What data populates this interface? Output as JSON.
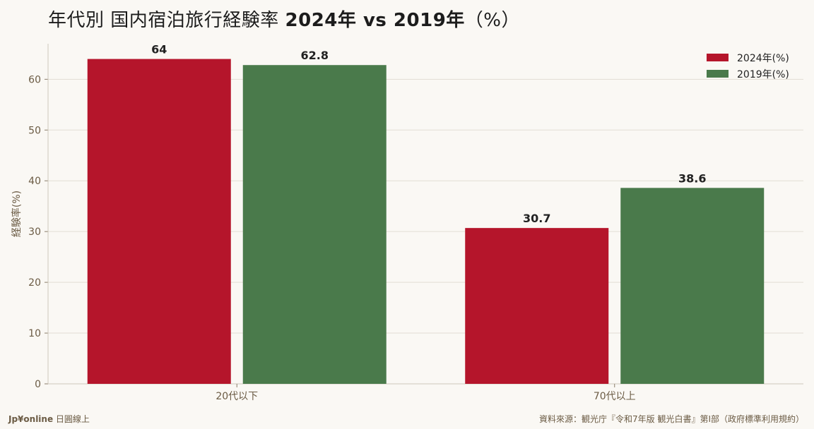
{
  "title_prefix": "年代別 国内宿泊旅行経験率 ",
  "title_years": "2024年 vs 2019年",
  "title_suffix": "（%）",
  "footer": {
    "brand": "Jp¥online",
    "brand_sub": " 日圓線上",
    "source": "資料來源：観光庁『令和7年版 観光白書』第I部（政府標準利用規約）"
  },
  "chart_data": {
    "type": "bar",
    "title": "年代別 国内宿泊旅行経験率 2024年 vs 2019年（%）",
    "xlabel": "",
    "ylabel": "経験率(%)",
    "categories": [
      "20代以下",
      "70代以上"
    ],
    "series": [
      {
        "name": "2024年(%)",
        "values": [
          64,
          30.7
        ],
        "color": "#b5152b"
      },
      {
        "name": "2019年(%)",
        "values": [
          62.8,
          38.6
        ],
        "color": "#4a7a4b"
      }
    ],
    "yticks": [
      0,
      10,
      20,
      30,
      40,
      50,
      60
    ],
    "ylim": [
      0,
      67
    ],
    "grid": true,
    "legend_position": "top-right",
    "data_labels": [
      "64",
      "30.7",
      "62.8",
      "38.6"
    ]
  }
}
